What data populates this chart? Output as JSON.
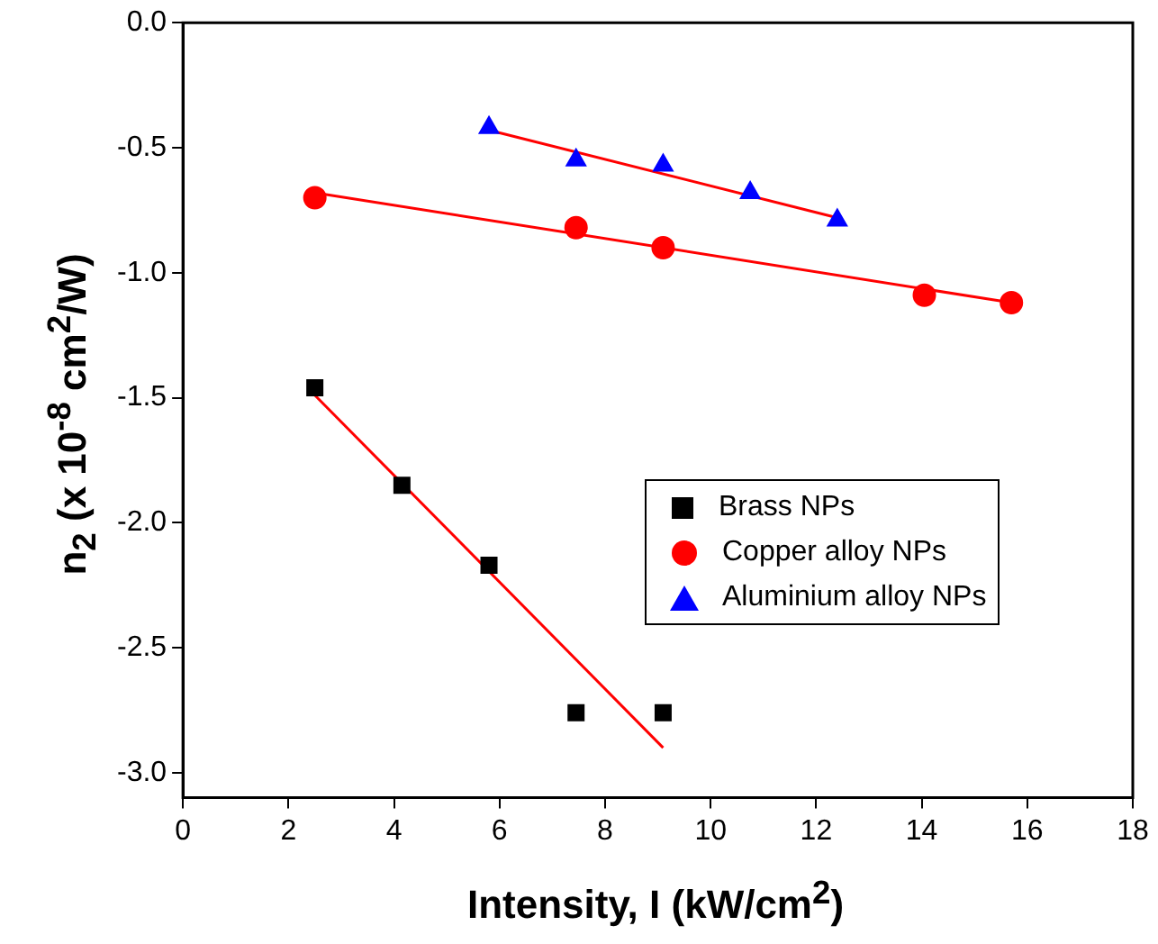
{
  "chart_data": {
    "type": "scatter",
    "xlabel": "Intensity, I (kW/cm$^{2}$)",
    "ylabel": "n$_{2}$ (x 10$^{-8}$ cm$^{2}$/W)",
    "xlim": [
      0,
      18
    ],
    "xticks": [
      0,
      2,
      4,
      6,
      8,
      10,
      12,
      14,
      16,
      18
    ],
    "ylim": [
      -3.1,
      0
    ],
    "yticks": [
      {
        "value": -3,
        "label": "-3.0"
      },
      -2.5,
      {
        "value": -2,
        "label": "-2.0"
      },
      -1.5,
      {
        "value": -1,
        "label": "-1.0"
      },
      -0.5,
      {
        "value": 0,
        "label": "0.0"
      }
    ],
    "grid": false,
    "legend": "right",
    "series": [
      {
        "name": "Brass NPs",
        "color": "#000000",
        "marker": "square",
        "x": [
          2.5,
          4.15,
          5.8,
          7.45,
          9.1
        ],
        "values": [
          -1.46,
          -1.85,
          -2.17,
          -2.76,
          -2.76
        ]
      },
      {
        "name": "Copper alloy NPs",
        "color": "#ff0000",
        "marker": "circle",
        "x": [
          2.5,
          7.45,
          9.1,
          14.05,
          15.7
        ],
        "values": [
          -0.7,
          -0.82,
          -0.9,
          -1.09,
          -1.12
        ]
      },
      {
        "name": "Aluminium alloy NPs",
        "color": "#0000ff",
        "marker": "triangle",
        "x": [
          5.8,
          7.45,
          9.1,
          10.75,
          12.4
        ],
        "values": [
          -0.42,
          -0.55,
          -0.57,
          -0.68,
          -0.79
        ]
      },
      {
        "type": "line",
        "color": "#ff0000",
        "marker": "none",
        "x": [
          2.5,
          9.1
        ],
        "values": [
          -1.49,
          -2.9
        ]
      },
      {
        "type": "line",
        "color": "#ff0000",
        "marker": "none",
        "x": [
          2.5,
          15.7
        ],
        "values": [
          -0.68,
          -1.12
        ]
      },
      {
        "type": "line",
        "color": "#ff0000",
        "marker": "none",
        "x": [
          5.8,
          12.4
        ],
        "values": [
          -0.43,
          -0.78
        ]
      }
    ]
  }
}
